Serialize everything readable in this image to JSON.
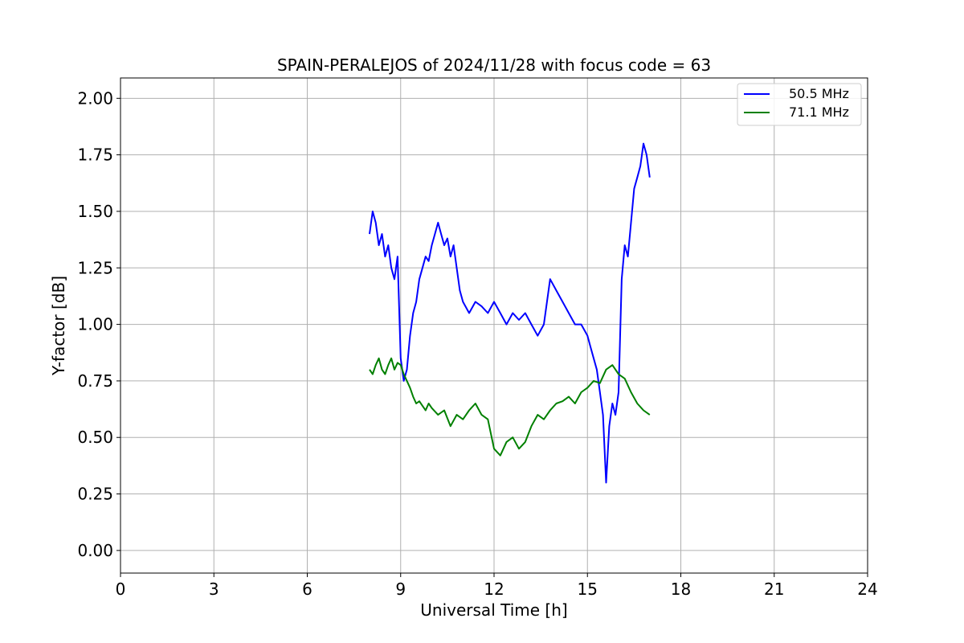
{
  "chart_data": {
    "type": "line",
    "title": "SPAIN-PERALEJOS of 2024/11/28 with focus code = 63",
    "xlabel": "Universal Time [h]",
    "ylabel": "Y-factor [dB]",
    "xlim": [
      0,
      24
    ],
    "ylim": [
      -0.1,
      2.09
    ],
    "xticks": [
      0,
      3,
      6,
      9,
      12,
      15,
      18,
      21,
      24
    ],
    "xtick_labels": [
      "0",
      "3",
      "6",
      "9",
      "12",
      "15",
      "18",
      "21",
      "24"
    ],
    "yticks": [
      0.0,
      0.25,
      0.5,
      0.75,
      1.0,
      1.25,
      1.5,
      1.75,
      2.0
    ],
    "ytick_labels": [
      "0.00",
      "0.25",
      "0.50",
      "0.75",
      "1.00",
      "1.25",
      "1.50",
      "1.75",
      "2.00"
    ],
    "grid": true,
    "legend_position": "top-right",
    "series": [
      {
        "name": "50.5 MHz",
        "color": "#0000ff",
        "x": [
          8.0,
          8.1,
          8.2,
          8.3,
          8.4,
          8.5,
          8.6,
          8.7,
          8.8,
          8.9,
          9.0,
          9.1,
          9.2,
          9.3,
          9.4,
          9.5,
          9.6,
          9.7,
          9.8,
          9.9,
          10.0,
          10.1,
          10.2,
          10.3,
          10.4,
          10.5,
          10.6,
          10.7,
          10.8,
          10.9,
          11.0,
          11.2,
          11.4,
          11.6,
          11.8,
          12.0,
          12.2,
          12.4,
          12.6,
          12.8,
          13.0,
          13.2,
          13.4,
          13.6,
          13.8,
          14.0,
          14.2,
          14.4,
          14.6,
          14.8,
          15.0,
          15.1,
          15.2,
          15.3,
          15.4,
          15.5,
          15.6,
          15.7,
          15.8,
          15.9,
          16.0,
          16.1,
          16.2,
          16.3,
          16.4,
          16.5,
          16.6,
          16.7,
          16.8,
          16.9,
          17.0
        ],
        "y": [
          1.4,
          1.5,
          1.45,
          1.35,
          1.4,
          1.3,
          1.35,
          1.25,
          1.2,
          1.3,
          0.85,
          0.75,
          0.8,
          0.95,
          1.05,
          1.1,
          1.2,
          1.25,
          1.3,
          1.28,
          1.35,
          1.4,
          1.45,
          1.4,
          1.35,
          1.38,
          1.3,
          1.35,
          1.25,
          1.15,
          1.1,
          1.05,
          1.1,
          1.08,
          1.05,
          1.1,
          1.05,
          1.0,
          1.05,
          1.02,
          1.05,
          1.0,
          0.95,
          1.0,
          1.2,
          1.15,
          1.1,
          1.05,
          1.0,
          1.0,
          0.95,
          0.9,
          0.85,
          0.8,
          0.7,
          0.6,
          0.3,
          0.55,
          0.65,
          0.6,
          0.7,
          1.2,
          1.35,
          1.3,
          1.45,
          1.6,
          1.65,
          1.7,
          1.8,
          1.75,
          1.65
        ]
      },
      {
        "name": "71.1 MHz",
        "color": "#008000",
        "x": [
          8.0,
          8.1,
          8.2,
          8.3,
          8.4,
          8.5,
          8.6,
          8.7,
          8.8,
          8.9,
          9.0,
          9.1,
          9.2,
          9.3,
          9.4,
          9.5,
          9.6,
          9.7,
          9.8,
          9.9,
          10.0,
          10.2,
          10.4,
          10.6,
          10.8,
          11.0,
          11.2,
          11.4,
          11.6,
          11.8,
          12.0,
          12.2,
          12.4,
          12.6,
          12.8,
          13.0,
          13.2,
          13.4,
          13.6,
          13.8,
          14.0,
          14.2,
          14.4,
          14.6,
          14.8,
          15.0,
          15.2,
          15.4,
          15.6,
          15.8,
          16.0,
          16.2,
          16.4,
          16.6,
          16.8,
          17.0
        ],
        "y": [
          0.8,
          0.78,
          0.82,
          0.85,
          0.8,
          0.78,
          0.82,
          0.85,
          0.8,
          0.83,
          0.82,
          0.78,
          0.75,
          0.72,
          0.68,
          0.65,
          0.66,
          0.64,
          0.62,
          0.65,
          0.63,
          0.6,
          0.62,
          0.55,
          0.6,
          0.58,
          0.62,
          0.65,
          0.6,
          0.58,
          0.45,
          0.42,
          0.48,
          0.5,
          0.45,
          0.48,
          0.55,
          0.6,
          0.58,
          0.62,
          0.65,
          0.66,
          0.68,
          0.65,
          0.7,
          0.72,
          0.75,
          0.74,
          0.8,
          0.82,
          0.78,
          0.76,
          0.7,
          0.65,
          0.62,
          0.6
        ]
      }
    ]
  }
}
